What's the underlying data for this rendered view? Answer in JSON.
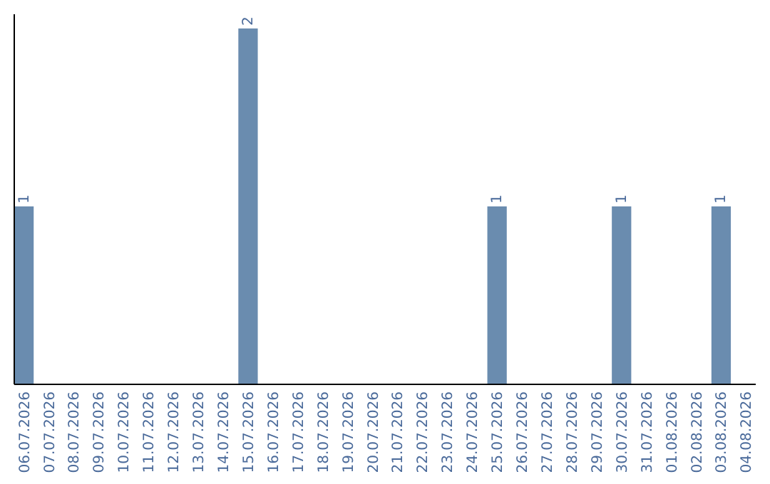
{
  "chart_data": {
    "type": "bar",
    "categories": [
      "06.07.2026",
      "07.07.2026",
      "08.07.2026",
      "09.07.2026",
      "10.07.2026",
      "11.07.2026",
      "12.07.2026",
      "13.07.2026",
      "14.07.2026",
      "15.07.2026",
      "16.07.2026",
      "17.07.2026",
      "18.07.2026",
      "19.07.2026",
      "20.07.2026",
      "21.07.2026",
      "22.07.2026",
      "23.07.2026",
      "24.07.2026",
      "25.07.2026",
      "26.07.2026",
      "27.07.2026",
      "28.07.2026",
      "29.07.2026",
      "30.07.2026",
      "31.07.2026",
      "01.08.2026",
      "02.08.2026",
      "03.08.2026",
      "04.08.2026"
    ],
    "values": [
      1,
      0,
      0,
      0,
      0,
      0,
      0,
      0,
      0,
      2,
      0,
      0,
      0,
      0,
      0,
      0,
      0,
      0,
      0,
      1,
      0,
      0,
      0,
      0,
      1,
      0,
      0,
      0,
      1,
      0
    ],
    "value_labels": [
      "1",
      null,
      null,
      null,
      null,
      null,
      null,
      null,
      null,
      "2",
      null,
      null,
      null,
      null,
      null,
      null,
      null,
      null,
      null,
      "1",
      null,
      null,
      null,
      null,
      "1",
      null,
      null,
      null,
      "1",
      null
    ],
    "color": "#6a8caf"
  }
}
